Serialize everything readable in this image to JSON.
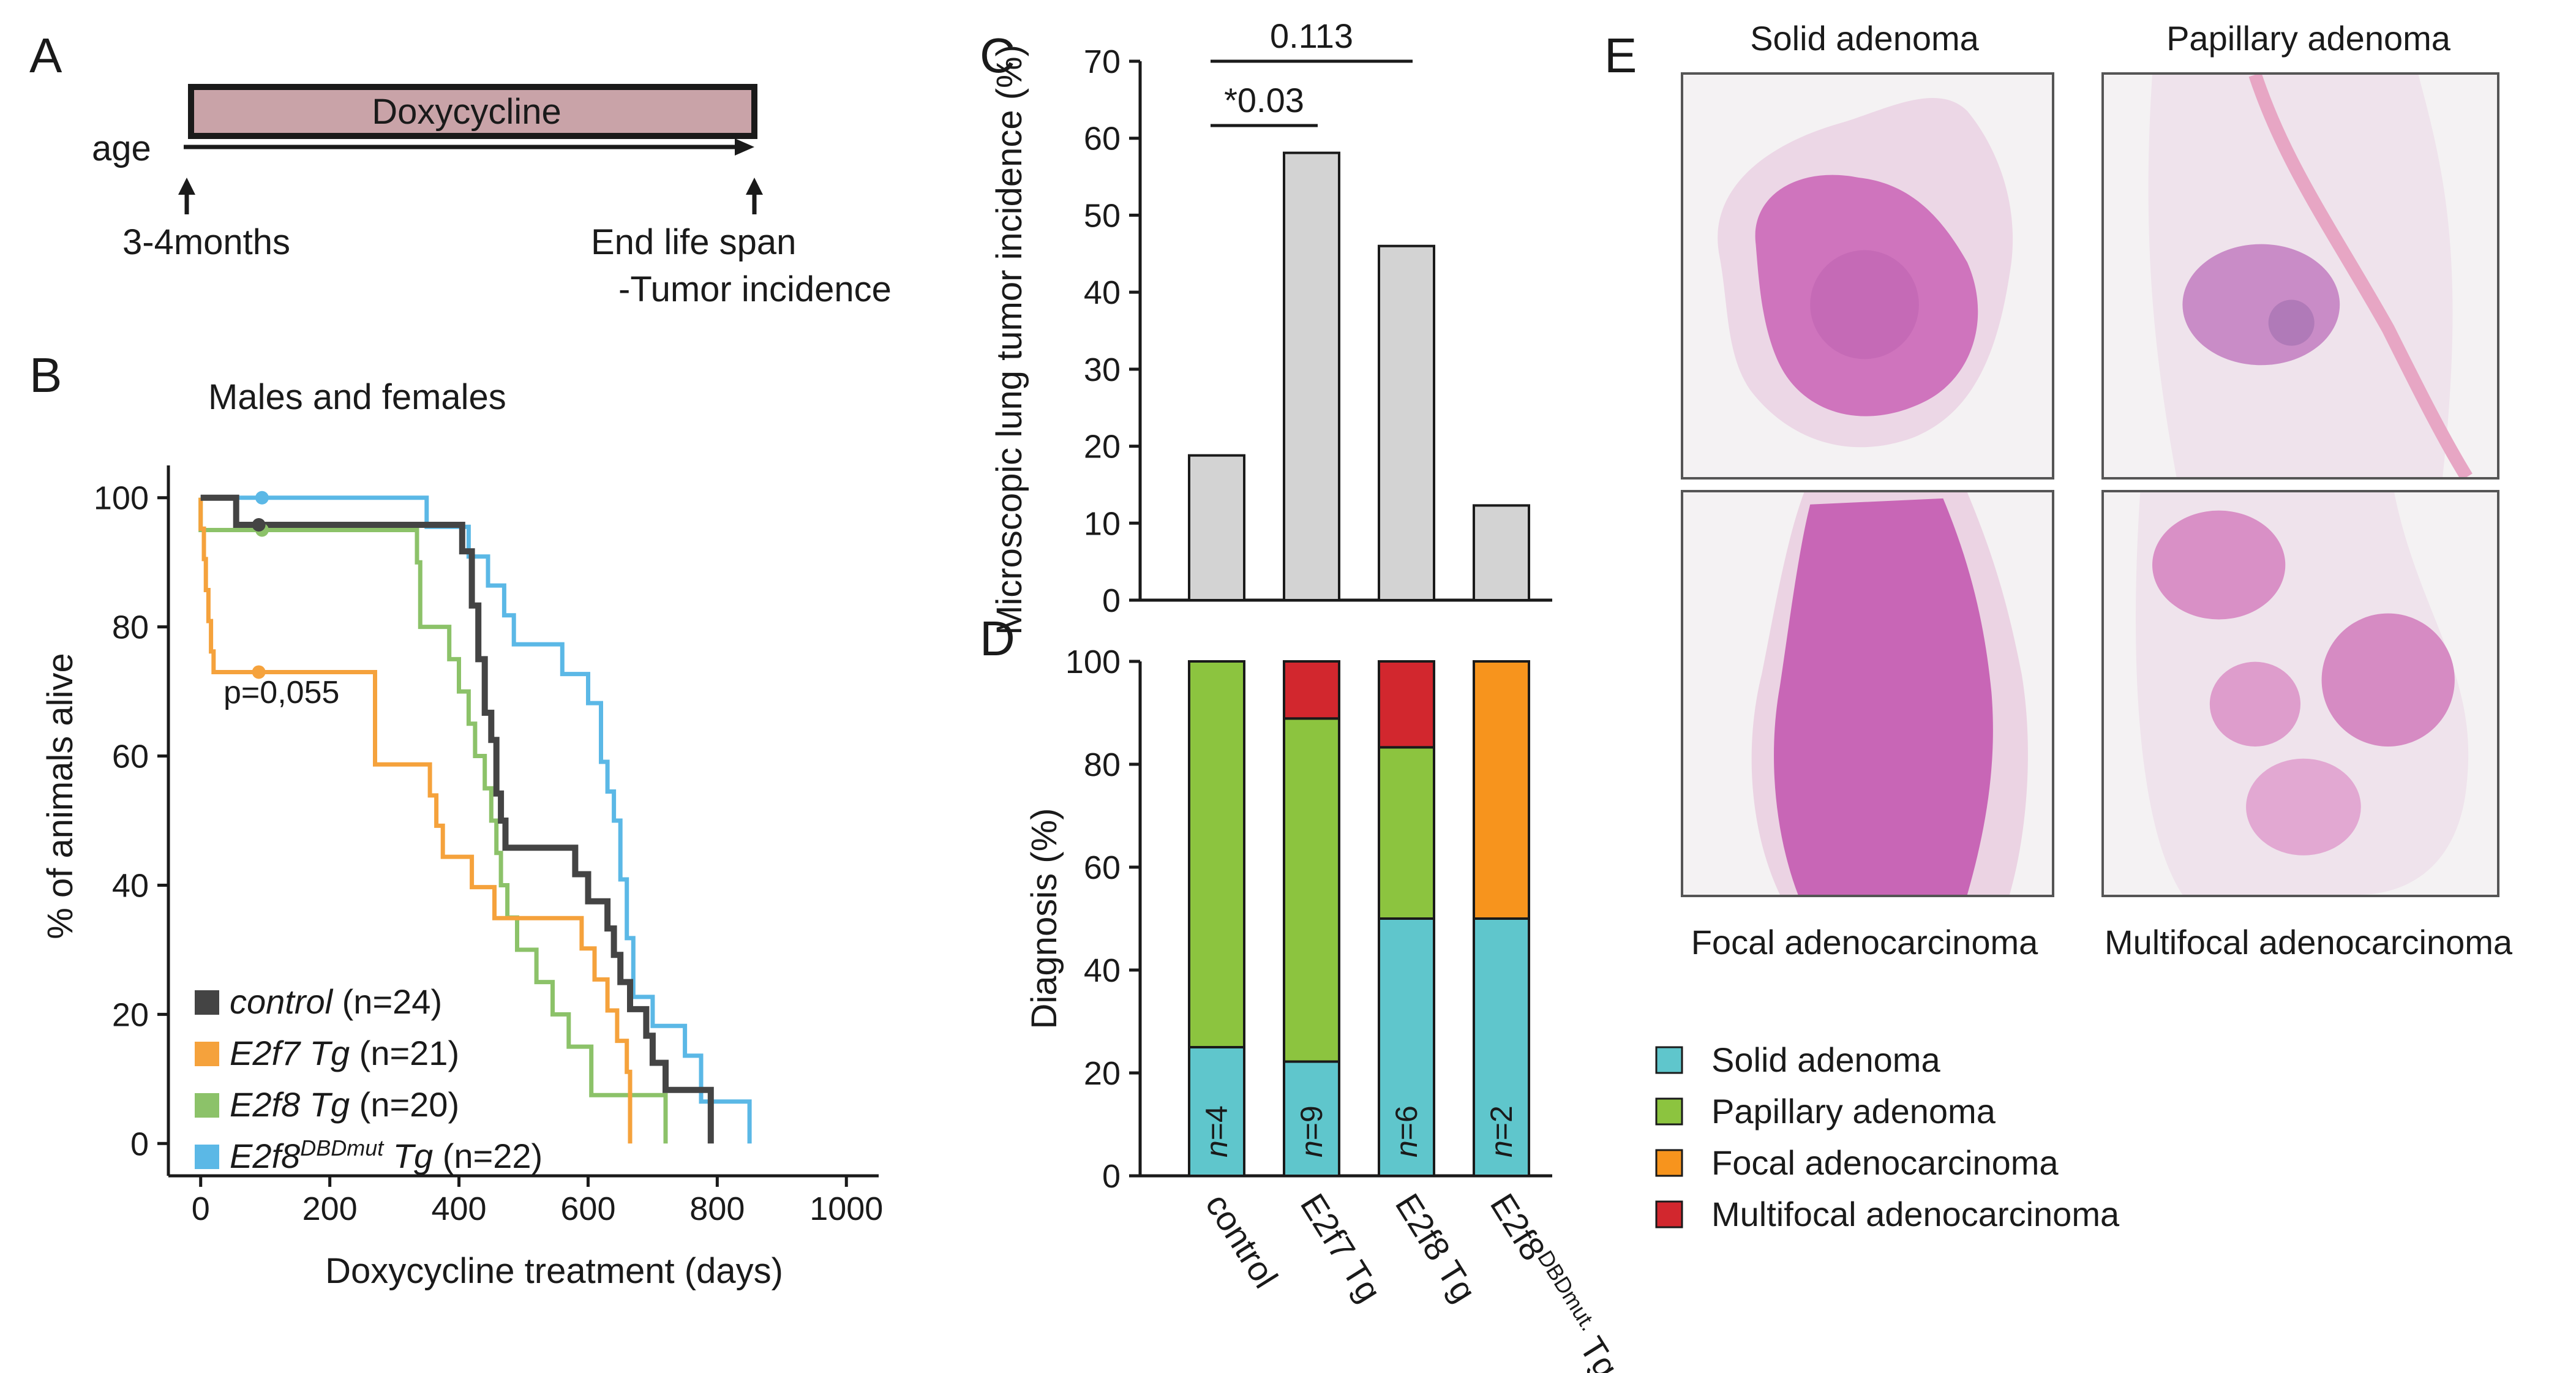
{
  "panels": {
    "A": "A",
    "B": "B",
    "C": "C",
    "D": "D",
    "E": "E"
  },
  "panel_a": {
    "bar_label": "Doxycycline",
    "bar_color": "#c9a3a8",
    "axis_label": "age",
    "start_label": "3-4months",
    "end_label_1": "End life span",
    "end_label_2": "-Tumor incidence"
  },
  "panel_e": {
    "top_left": "Solid adenoma",
    "top_right": "Papillary adenoma",
    "bottom_left": "Focal adenocarcinoma",
    "bottom_right": "Multifocal adenocarcinoma"
  },
  "chart_data": [
    {
      "type": "line",
      "id": "survival",
      "title": "Males and females",
      "xlabel": "Doxycycline treatment (days)",
      "ylabel": "% of animals alive",
      "xlim": [
        -50,
        1050
      ],
      "ylim": [
        -5,
        105
      ],
      "xticks": [
        0,
        200,
        400,
        600,
        800,
        1000
      ],
      "yticks": [
        0,
        20,
        40,
        60,
        80,
        100
      ],
      "annotation": "p=0,055",
      "legend_position": "bottom-left",
      "series": [
        {
          "name": "control",
          "n_label": "(n=24)",
          "color": "#444444",
          "points": [
            [
              0,
              100
            ],
            [
              55,
              100
            ],
            [
              55,
              95.8
            ],
            [
              405,
              95.8
            ],
            [
              405,
              91.7
            ],
            [
              420,
              91.7
            ],
            [
              420,
              83.3
            ],
            [
              430,
              83.3
            ],
            [
              430,
              75
            ],
            [
              440,
              75
            ],
            [
              440,
              66.7
            ],
            [
              450,
              66.7
            ],
            [
              450,
              62.5
            ],
            [
              458,
              62.5
            ],
            [
              458,
              54.2
            ],
            [
              465,
              54.2
            ],
            [
              465,
              50
            ],
            [
              472,
              50
            ],
            [
              472,
              45.8
            ],
            [
              580,
              45.8
            ],
            [
              580,
              41.7
            ],
            [
              600,
              41.7
            ],
            [
              600,
              37.5
            ],
            [
              630,
              37.5
            ],
            [
              630,
              33.3
            ],
            [
              640,
              33.3
            ],
            [
              640,
              29.2
            ],
            [
              650,
              29.2
            ],
            [
              650,
              25
            ],
            [
              665,
              25
            ],
            [
              665,
              20.8
            ],
            [
              690,
              20.8
            ],
            [
              690,
              16.7
            ],
            [
              700,
              16.7
            ],
            [
              700,
              12.5
            ],
            [
              720,
              12.5
            ],
            [
              720,
              8.3
            ],
            [
              790,
              8.3
            ],
            [
              790,
              0
            ]
          ],
          "censored": [
            [
              90,
              95.8
            ]
          ]
        },
        {
          "name": "E2f7 Tg",
          "n_label": "(n=21)",
          "color": "#f5a23c",
          "points": [
            [
              0,
              100
            ],
            [
              0,
              95.2
            ],
            [
              5,
              95.2
            ],
            [
              5,
              90.5
            ],
            [
              8,
              90.5
            ],
            [
              8,
              85.7
            ],
            [
              12,
              85.7
            ],
            [
              12,
              80.9
            ],
            [
              16,
              80.9
            ],
            [
              16,
              76.2
            ],
            [
              20,
              76.2
            ],
            [
              20,
              73
            ],
            [
              270,
              73
            ],
            [
              270,
              58.7
            ],
            [
              355,
              58.7
            ],
            [
              355,
              53.9
            ],
            [
              365,
              53.9
            ],
            [
              365,
              49.2
            ],
            [
              375,
              49.2
            ],
            [
              375,
              44.4
            ],
            [
              420,
              44.4
            ],
            [
              420,
              39.7
            ],
            [
              455,
              39.7
            ],
            [
              455,
              34.9
            ],
            [
              590,
              34.9
            ],
            [
              590,
              30.2
            ],
            [
              610,
              30.2
            ],
            [
              610,
              25.4
            ],
            [
              630,
              25.4
            ],
            [
              630,
              20.6
            ],
            [
              645,
              20.6
            ],
            [
              645,
              15.9
            ],
            [
              660,
              15.9
            ],
            [
              660,
              11.1
            ],
            [
              665,
              11.1
            ],
            [
              665,
              0
            ]
          ],
          "censored": [
            [
              90,
              73
            ]
          ]
        },
        {
          "name": "E2f8 Tg",
          "n_label": "(n=20)",
          "color": "#8cc269",
          "points": [
            [
              0,
              100
            ],
            [
              0,
              95
            ],
            [
              335,
              95
            ],
            [
              335,
              90
            ],
            [
              340,
              90
            ],
            [
              340,
              80
            ],
            [
              385,
              80
            ],
            [
              385,
              75
            ],
            [
              400,
              75
            ],
            [
              400,
              70
            ],
            [
              415,
              70
            ],
            [
              415,
              65
            ],
            [
              425,
              65
            ],
            [
              425,
              60
            ],
            [
              440,
              60
            ],
            [
              440,
              55
            ],
            [
              450,
              55
            ],
            [
              450,
              50
            ],
            [
              458,
              50
            ],
            [
              458,
              45
            ],
            [
              465,
              45
            ],
            [
              465,
              40
            ],
            [
              475,
              40
            ],
            [
              475,
              35
            ],
            [
              490,
              35
            ],
            [
              490,
              30
            ],
            [
              520,
              30
            ],
            [
              520,
              25
            ],
            [
              545,
              25
            ],
            [
              545,
              20
            ],
            [
              570,
              20
            ],
            [
              570,
              15
            ],
            [
              605,
              15
            ],
            [
              605,
              7.5
            ],
            [
              720,
              7.5
            ],
            [
              720,
              0
            ]
          ],
          "censored": [
            [
              95,
              95
            ]
          ]
        },
        {
          "name": "E2f8DBDmut Tg",
          "n_label": "(n=22)",
          "color": "#5bb8e6",
          "points": [
            [
              0,
              100
            ],
            [
              350,
              100
            ],
            [
              350,
              95.5
            ],
            [
              415,
              95.5
            ],
            [
              415,
              90.9
            ],
            [
              445,
              90.9
            ],
            [
              445,
              86.4
            ],
            [
              470,
              86.4
            ],
            [
              470,
              81.8
            ],
            [
              485,
              81.8
            ],
            [
              485,
              77.3
            ],
            [
              560,
              77.3
            ],
            [
              560,
              72.7
            ],
            [
              600,
              72.7
            ],
            [
              600,
              68.2
            ],
            [
              620,
              68.2
            ],
            [
              620,
              59.1
            ],
            [
              630,
              59.1
            ],
            [
              630,
              54.5
            ],
            [
              640,
              54.5
            ],
            [
              640,
              50
            ],
            [
              650,
              50
            ],
            [
              650,
              40.9
            ],
            [
              660,
              40.9
            ],
            [
              660,
              31.8
            ],
            [
              670,
              31.8
            ],
            [
              670,
              22.7
            ],
            [
              700,
              22.7
            ],
            [
              700,
              18.2
            ],
            [
              750,
              18.2
            ],
            [
              750,
              13.6
            ],
            [
              775,
              13.6
            ],
            [
              775,
              6.5
            ],
            [
              850,
              6.5
            ],
            [
              850,
              0
            ]
          ],
          "censored": [
            [
              95,
              100
            ]
          ]
        }
      ]
    },
    {
      "type": "bar",
      "id": "incidence",
      "ylabel": "Microscopic lung tumor incidence (%)",
      "ylim": [
        0,
        70
      ],
      "yticks": [
        0,
        10,
        20,
        30,
        40,
        50,
        60,
        70
      ],
      "categories": [
        "control",
        "E2f7 Tg",
        "E2f8 Tg",
        "E2f8DBDmut. Tg"
      ],
      "values": [
        18.8,
        58.1,
        46,
        12.3
      ],
      "bar_color": "#d3d3d3",
      "brackets": [
        {
          "from": 0,
          "to": 1,
          "label": "*0.03"
        },
        {
          "from": 0,
          "to": 2,
          "label": "0.113"
        }
      ]
    },
    {
      "type": "bar",
      "id": "diagnosis",
      "stacked": true,
      "ylabel": "Diagnosis (%)",
      "ylim": [
        0,
        100
      ],
      "yticks": [
        0,
        20,
        40,
        60,
        80,
        100
      ],
      "categories": [
        "control",
        "E2f7 Tg",
        "E2f8 Tg",
        "E2f8DBDmut. Tg"
      ],
      "n_labels": [
        "n=4",
        "n=9",
        "n=6",
        "n=2"
      ],
      "legend_position": "right",
      "series": [
        {
          "name": "Solid adenoma",
          "color": "#5fc6cc",
          "values": [
            25,
            22.2,
            50,
            50
          ]
        },
        {
          "name": "Papillary adenoma",
          "color": "#8cc43f",
          "values": [
            75,
            66.7,
            33.3,
            0
          ]
        },
        {
          "name": "Focal adenocarcinoma",
          "color": "#f7941d",
          "values": [
            0,
            0,
            0,
            50
          ]
        },
        {
          "name": "Multifocal adenocarcinoma",
          "color": "#d2272e",
          "values": [
            0,
            11.1,
            16.7,
            0
          ]
        }
      ]
    }
  ]
}
